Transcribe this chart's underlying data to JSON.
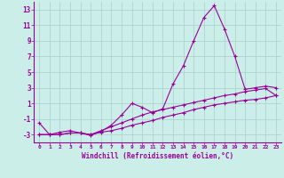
{
  "xlabel": "Windchill (Refroidissement éolien,°C)",
  "ylabel": "",
  "background_color": "#cceee8",
  "line_color": "#990099",
  "grid_color": "#aacccc",
  "x_ticks": [
    0,
    1,
    2,
    3,
    4,
    5,
    6,
    7,
    8,
    9,
    10,
    11,
    12,
    13,
    14,
    15,
    16,
    17,
    18,
    19,
    20,
    21,
    22,
    23
  ],
  "y_ticks": [
    -3,
    -1,
    1,
    3,
    5,
    7,
    9,
    11,
    13
  ],
  "ylim": [
    -4,
    14
  ],
  "xlim": [
    -0.5,
    23.5
  ],
  "series1_x": [
    0,
    1,
    2,
    3,
    4,
    5,
    6,
    7,
    8,
    9,
    10,
    11,
    12,
    13,
    14,
    15,
    16,
    17,
    18,
    19,
    20,
    21,
    22,
    23
  ],
  "series1_y": [
    -1.5,
    -3.0,
    -2.7,
    -2.5,
    -2.8,
    -3.1,
    -2.6,
    -1.8,
    -0.5,
    1.0,
    0.5,
    -0.2,
    0.3,
    3.5,
    5.8,
    9.0,
    12.0,
    13.5,
    10.5,
    7.0,
    2.8,
    3.0,
    3.2,
    3.0
  ],
  "series2_x": [
    0,
    1,
    2,
    3,
    4,
    5,
    6,
    7,
    8,
    9,
    10,
    11,
    12,
    13,
    14,
    15,
    16,
    17,
    18,
    19,
    20,
    21,
    22,
    23
  ],
  "series2_y": [
    -3.0,
    -3.0,
    -3.0,
    -2.8,
    -2.8,
    -3.0,
    -2.7,
    -2.5,
    -2.2,
    -1.8,
    -1.5,
    -1.2,
    -0.8,
    -0.5,
    -0.2,
    0.2,
    0.5,
    0.8,
    1.0,
    1.2,
    1.4,
    1.5,
    1.7,
    2.0
  ],
  "series3_x": [
    0,
    1,
    2,
    3,
    4,
    5,
    6,
    7,
    8,
    9,
    10,
    11,
    12,
    13,
    14,
    15,
    16,
    17,
    18,
    19,
    20,
    21,
    22,
    23
  ],
  "series3_y": [
    -3.0,
    -3.0,
    -3.0,
    -2.8,
    -2.8,
    -3.0,
    -2.5,
    -2.0,
    -1.5,
    -1.0,
    -0.5,
    -0.1,
    0.2,
    0.5,
    0.8,
    1.1,
    1.4,
    1.7,
    2.0,
    2.2,
    2.5,
    2.7,
    2.9,
    2.0
  ],
  "figsize": [
    3.2,
    2.0
  ],
  "dpi": 100
}
